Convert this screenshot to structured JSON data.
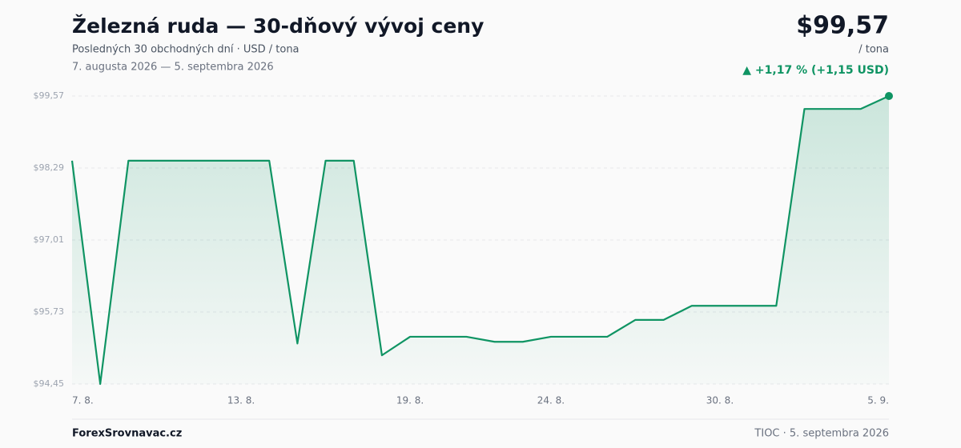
{
  "chart_data": {
    "type": "line",
    "title": "Železná ruda — 30-dňový vývoj ceny",
    "subtitle": "Posledných 30 obchodných dní · USD / tona",
    "date_range": "7. augusta 2026 — 5. septembra 2026",
    "price": "$99,57",
    "unit": "/ tona",
    "change": "▲ +1,17 % (+1,15 USD)",
    "source": "ForexSrovnavac.cz",
    "footer_note": "TIOC · 5. septembra 2026",
    "categories": [
      "7. 8.",
      null,
      null,
      null,
      null,
      null,
      "13. 8.",
      null,
      null,
      null,
      null,
      null,
      "19. 8.",
      null,
      null,
      null,
      null,
      "24. 8.",
      null,
      null,
      null,
      null,
      null,
      "30. 8.",
      null,
      null,
      null,
      null,
      null,
      "5. 9."
    ],
    "series": [
      {
        "name": "TIOC",
        "color": "#0f9463",
        "values": [
          98.42,
          94.45,
          98.42,
          98.42,
          98.42,
          98.42,
          98.42,
          98.42,
          95.17,
          98.42,
          98.42,
          94.96,
          95.29,
          95.29,
          95.29,
          95.2,
          95.2,
          95.29,
          95.29,
          95.29,
          95.59,
          95.59,
          95.84,
          95.84,
          95.84,
          95.84,
          99.34,
          99.34,
          99.34,
          99.57
        ]
      }
    ],
    "ylim": [
      94.45,
      99.57
    ],
    "yticks": [
      {
        "value": 94.45,
        "label": "$94,45"
      },
      {
        "value": 95.73,
        "label": "$95,73"
      },
      {
        "value": 97.01,
        "label": "$97,01"
      },
      {
        "value": 98.29,
        "label": "$98,29"
      },
      {
        "value": 99.57,
        "label": "$99,57"
      }
    ],
    "grid": true
  }
}
